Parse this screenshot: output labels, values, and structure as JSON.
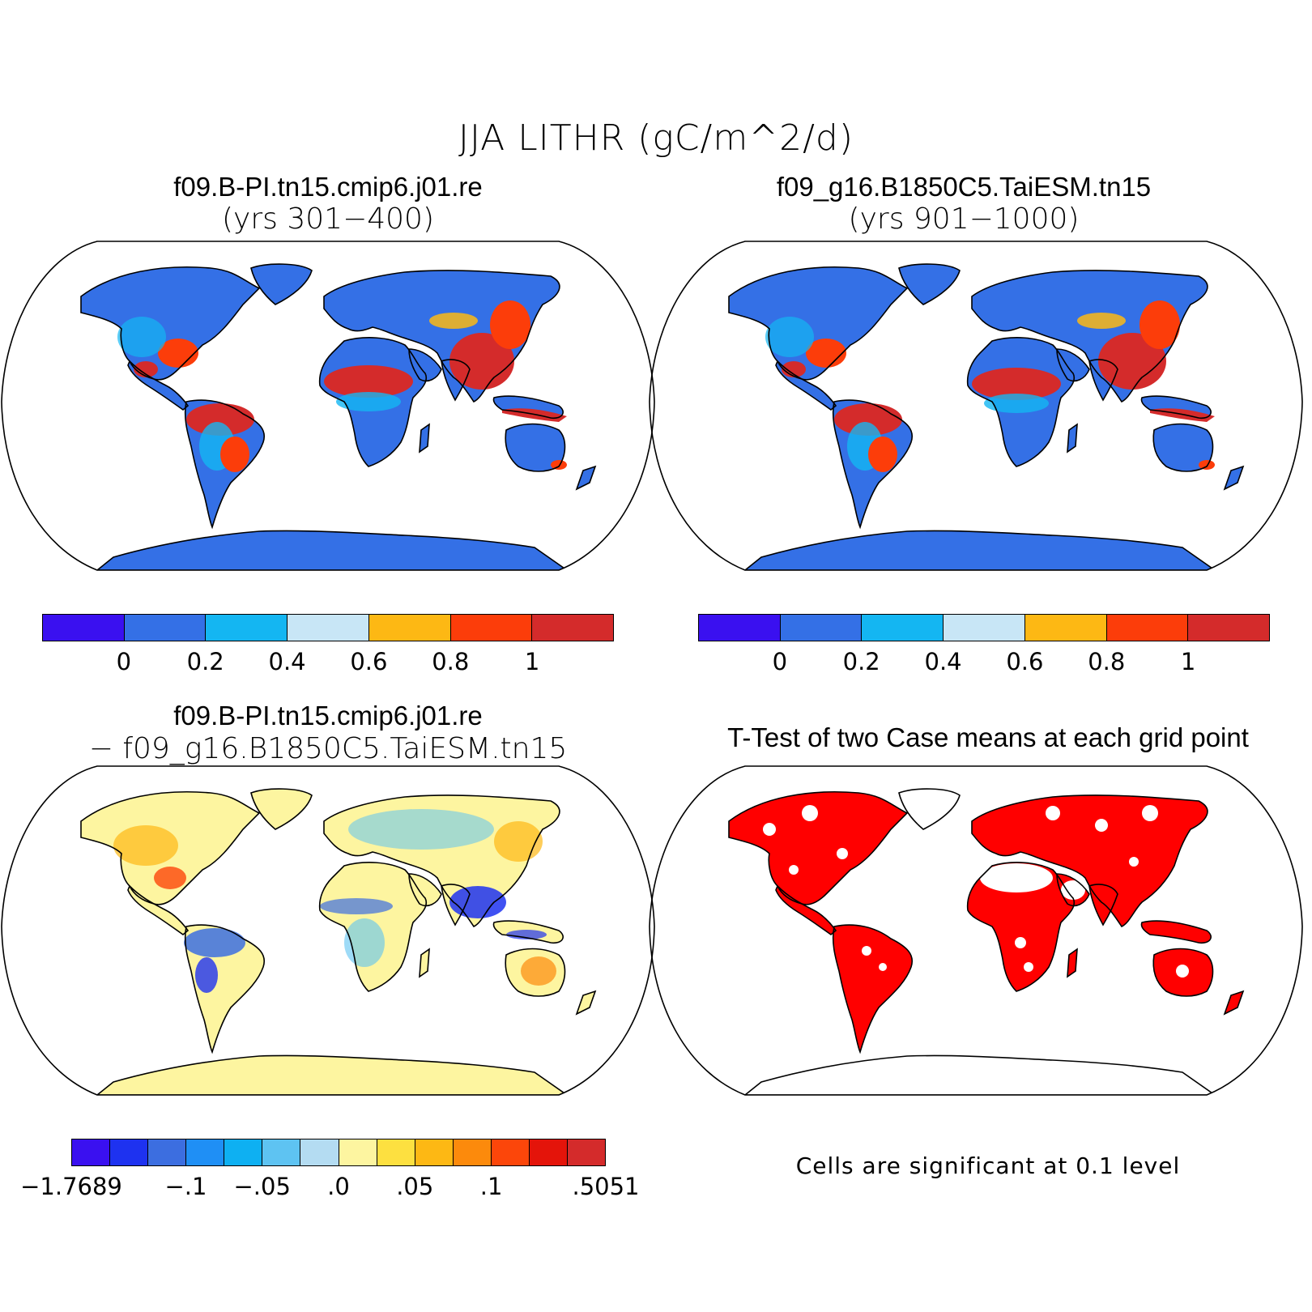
{
  "title": "JJA LITHR (gC/m^2/d)",
  "panels": {
    "top_left": {
      "case": "f09.B-PI.tn15.cmip6.j01.re",
      "years": "(yrs 301−400)",
      "colorbar": {
        "colors": [
          "#3a10f0",
          "#3470e6",
          "#14b6f2",
          "#c8e6f6",
          "#fdb814",
          "#fc3d0a",
          "#d42b2b"
        ],
        "tick_labels": [
          "0",
          "0.2",
          "0.4",
          "0.6",
          "0.8",
          "1"
        ]
      }
    },
    "top_right": {
      "case": "f09_g16.B1850C5.TaiESM.tn15",
      "years": "(yrs 901−1000)",
      "colorbar": {
        "colors": [
          "#3a10f0",
          "#3470e6",
          "#14b6f2",
          "#c8e6f6",
          "#fdb814",
          "#fc3d0a",
          "#d42b2b"
        ],
        "tick_labels": [
          "0",
          "0.2",
          "0.4",
          "0.6",
          "0.8",
          "1"
        ]
      }
    },
    "bottom_left": {
      "case": "f09.B-PI.tn15.cmip6.j01.re",
      "minus_case": "− f09_g16.B1850C5.TaiESM.tn15",
      "colorbar": {
        "colors": [
          "#3a10f0",
          "#1e32f0",
          "#3c6ee0",
          "#1f8ff5",
          "#0eb0f2",
          "#5ec3f2",
          "#b4dcf2",
          "#fdf5a0",
          "#fde040",
          "#fdb814",
          "#fc8a0c",
          "#fc460a",
          "#e4140a",
          "#d42b2b"
        ],
        "tick_labels": [
          "−1.7689",
          "−.1",
          "−.05",
          ".0",
          ".05",
          ".1",
          ".5051"
        ]
      }
    },
    "bottom_right": {
      "title": "T-Test of two Case means at each grid point",
      "footnote": "Cells are significant at 0.1 level",
      "significant_color": "#ff0000"
    }
  },
  "map_colors": {
    "land_base": "#3470e6",
    "diff_land_base": "#fdf5a0",
    "coast": "#000000"
  }
}
